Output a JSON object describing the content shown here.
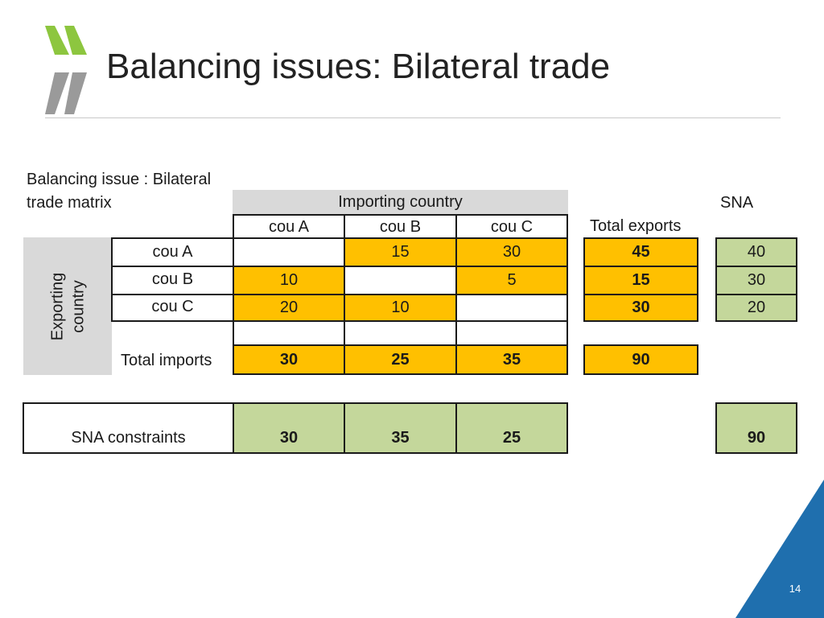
{
  "title": "Balancing issues: Bilateral trade",
  "caption_line1": "Balancing issue : Bilateral",
  "caption_line2": "trade matrix",
  "importing_header": "Importing country",
  "sna_header": "SNA",
  "exporting_line1": "Exporting",
  "exporting_line2": "country",
  "columns": [
    "cou A",
    "cou B",
    "cou C"
  ],
  "total_exports_label": "Total exports",
  "rows": [
    {
      "label": "cou A",
      "values": [
        "",
        "15",
        "30"
      ],
      "total_exports": "45",
      "sna": "40"
    },
    {
      "label": "cou B",
      "values": [
        "10",
        "",
        "5"
      ],
      "total_exports": "15",
      "sna": "30"
    },
    {
      "label": "cou C",
      "values": [
        "20",
        "10",
        ""
      ],
      "total_exports": "30",
      "sna": "20"
    }
  ],
  "total_imports_label": "Total imports",
  "total_imports": [
    "30",
    "25",
    "35"
  ],
  "grand_total": "90",
  "sna_constraints_label": "SNA constraints",
  "sna_constraints": [
    "30",
    "35",
    "25"
  ],
  "sna_constraints_total": "90",
  "page_number": "14",
  "colors": {
    "orange": "#ffc000",
    "green": "#c4d79b",
    "grey": "#d9d9d9",
    "corner_blue": "#1f6fae",
    "logo_green": "#8dc63f",
    "logo_grey": "#9a9a9a"
  }
}
